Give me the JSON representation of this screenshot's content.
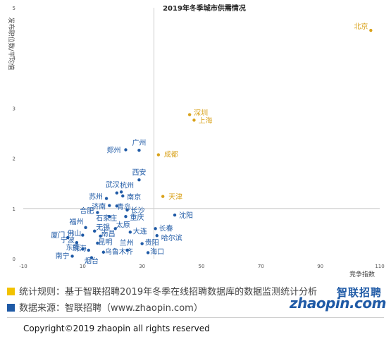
{
  "chart_data": {
    "type": "scatter",
    "title": "2019年冬季城市供需情况",
    "xlabel": "竞争指数",
    "ylabel": "发布职位数/平均值",
    "xlim": [
      -10,
      110
    ],
    "ylim": [
      0,
      5
    ],
    "x_ticks": [
      "-10",
      "10",
      "30",
      "50",
      "70",
      "90",
      "110"
    ],
    "y_ticks": [
      "0",
      "1",
      "2",
      "3",
      "4",
      "5"
    ],
    "grid": false,
    "colors": {
      "highlight": "#d9a21b",
      "normal": "#1f5aa6",
      "axis": "#cccccc"
    },
    "series": [
      {
        "color_key": "highlight",
        "points": [
          {
            "label": "北京",
            "x": 107,
            "y": 4.55
          },
          {
            "label": "深圳",
            "x": 46,
            "y": 2.87
          },
          {
            "label": "上海",
            "x": 47.5,
            "y": 2.76
          },
          {
            "label": "成都",
            "x": 35.5,
            "y": 2.07
          },
          {
            "label": "天津",
            "x": 37,
            "y": 1.24
          }
        ]
      },
      {
        "color_key": "normal",
        "points": [
          {
            "label": "广州",
            "x": 29,
            "y": 2.16
          },
          {
            "label": "郑州",
            "x": 24.5,
            "y": 2.17
          },
          {
            "label": "西安",
            "x": 29,
            "y": 1.57
          },
          {
            "label": "武汉",
            "x": 21.5,
            "y": 1.31
          },
          {
            "label": "杭州",
            "x": 23,
            "y": 1.33
          },
          {
            "label": "南京",
            "x": 23.5,
            "y": 1.25
          },
          {
            "label": "苏州",
            "x": 18,
            "y": 1.2
          },
          {
            "label": "济南",
            "x": 19,
            "y": 1.06
          },
          {
            "label": "青岛",
            "x": 21.5,
            "y": 1.05
          },
          {
            "label": "合肥",
            "x": 15,
            "y": 0.92
          },
          {
            "label": "长沙",
            "x": 25,
            "y": 0.97
          },
          {
            "label": "重庆",
            "x": 24.5,
            "y": 0.84
          },
          {
            "label": "沈阳",
            "x": 41,
            "y": 0.87
          },
          {
            "label": "石家庄",
            "x": 19,
            "y": 0.84
          },
          {
            "label": "福州",
            "x": 11,
            "y": 0.62
          },
          {
            "label": "太原",
            "x": 21,
            "y": 0.6
          },
          {
            "label": "无锡",
            "x": 14,
            "y": 0.55
          },
          {
            "label": "大连",
            "x": 26,
            "y": 0.53
          },
          {
            "label": "长春",
            "x": 34.5,
            "y": 0.6
          },
          {
            "label": "佛山",
            "x": 10,
            "y": 0.47
          },
          {
            "label": "南昌",
            "x": 16,
            "y": 0.45
          },
          {
            "label": "哈尔滨",
            "x": 35,
            "y": 0.46
          },
          {
            "label": "厦门",
            "x": 5,
            "y": 0.42
          },
          {
            "label": "宁波",
            "x": 8,
            "y": 0.32
          },
          {
            "label": "昆明",
            "x": 15,
            "y": 0.31
          },
          {
            "label": "贵阳",
            "x": 30,
            "y": 0.3
          },
          {
            "label": "东莞",
            "x": 10,
            "y": 0.19
          },
          {
            "label": "珠海",
            "x": 12,
            "y": 0.17
          },
          {
            "label": "兰州",
            "x": 25,
            "y": 0.17
          },
          {
            "label": "海口",
            "x": 32,
            "y": 0.12
          },
          {
            "label": "南宁",
            "x": 6.5,
            "y": 0.05
          },
          {
            "label": "烟台",
            "x": 13,
            "y": 0.02
          },
          {
            "label": "乌鲁木齐",
            "x": 17,
            "y": 0.13
          }
        ]
      }
    ]
  },
  "legend": {
    "rule_text": "统计规则：基于智联招聘2019年冬季在线招聘数据库的数据监测统计分析",
    "source_text": "数据来源：智联招聘（www.zhaopin.com）",
    "rule_color": "#f2c200",
    "source_color": "#1f5aa6"
  },
  "logo": {
    "cn": "智联招聘",
    "en": "zhaopin.com"
  },
  "footer": {
    "copyright": "Copyright©2019 zhaopin all rights reserved"
  }
}
